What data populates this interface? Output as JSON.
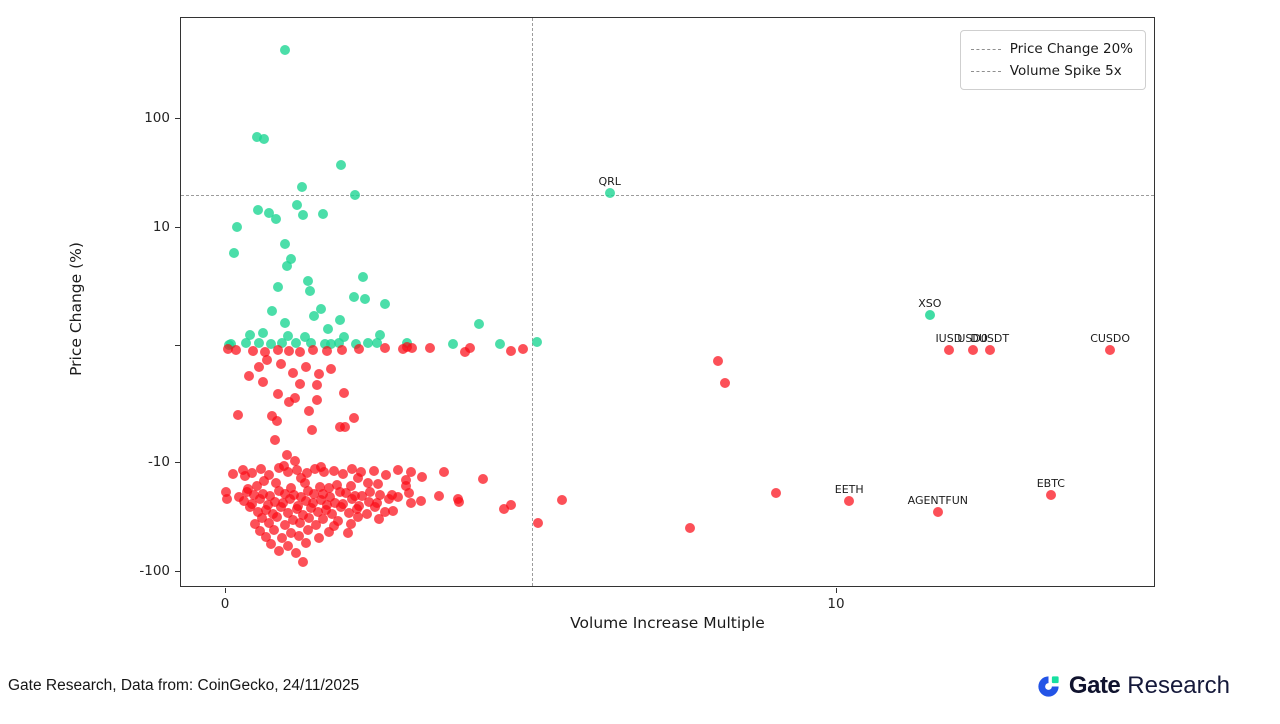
{
  "chart_data": {
    "type": "scatter",
    "title": "",
    "xlabel": "Volume Increase Multiple",
    "ylabel": "Price Change (%)",
    "x_scale": "linear",
    "y_scale": "symlog",
    "y_linthresh": 10,
    "xlim": [
      -0.75,
      15.2
    ],
    "ylim": [
      -140,
      840
    ],
    "grid": false,
    "x_ticks": [
      {
        "value": 0,
        "label": "0"
      },
      {
        "value": 10,
        "label": "10"
      }
    ],
    "y_ticks": [
      {
        "value": 100,
        "label": "100"
      },
      {
        "value": 10,
        "label": "10"
      },
      {
        "value": 0,
        "label": ""
      },
      {
        "value": -10,
        "label": "-10"
      },
      {
        "value": -100,
        "label": "-100"
      }
    ],
    "reference_lines": [
      {
        "axis": "y",
        "value": 20,
        "label": "Price Change 20%",
        "style": "dashed",
        "color": "#9c9c9c"
      },
      {
        "axis": "x",
        "value": 5,
        "label": "Volume Spike 5x",
        "style": "dashed",
        "color": "#9c9c9c"
      }
    ],
    "legend": {
      "position": "upper right",
      "entries": [
        {
          "label": "Price Change 20%"
        },
        {
          "label": "Volume Spike 5x"
        }
      ]
    },
    "labeled_points": [
      {
        "label": "QRL",
        "x": 6.28,
        "y": 20.9,
        "series": "gainers"
      },
      {
        "label": "XSO",
        "x": 11.52,
        "y": 2.6,
        "series": "losers_green_note",
        "color": "#2BDB9B"
      },
      {
        "label": "IUSD",
        "x": 11.83,
        "y": -0.35,
        "series": "losers"
      },
      {
        "label": "USD0",
        "x": 12.22,
        "y": -0.35,
        "series": "losers"
      },
      {
        "label": "DUSDT",
        "x": 12.5,
        "y": -0.35,
        "series": "losers"
      },
      {
        "label": "CUSDO",
        "x": 14.47,
        "y": -0.4,
        "series": "losers"
      },
      {
        "label": "EETH",
        "x": 10.2,
        "y": -22.3,
        "series": "losers"
      },
      {
        "label": "AGENTFUN",
        "x": 11.65,
        "y": -28.1,
        "series": "losers"
      },
      {
        "label": "EBTC",
        "x": 13.5,
        "y": -19.6,
        "series": "losers"
      }
    ],
    "series": [
      {
        "name": "gainers",
        "color": "rgba(30,214,148,0.8)",
        "points": [
          [
            0.97,
            430
          ],
          [
            0.51,
            68
          ],
          [
            0.62,
            65
          ],
          [
            1.88,
            38
          ],
          [
            1.24,
            24
          ],
          [
            2.11,
            20.1
          ],
          [
            0.52,
            14.6
          ],
          [
            0.7,
            13.7
          ],
          [
            0.82,
            12.1
          ],
          [
            1.16,
            16.2
          ],
          [
            1.26,
            13.2
          ],
          [
            1.59,
            13.4
          ],
          [
            0.18,
            10.2
          ],
          [
            0.13,
            7.9
          ],
          [
            0.97,
            8.6
          ],
          [
            1.06,
            7.4
          ],
          [
            1.0,
            6.8
          ],
          [
            1.34,
            5.5
          ],
          [
            1.37,
            4.6
          ],
          [
            0.85,
            5.0
          ],
          [
            2.24,
            5.8
          ],
          [
            2.09,
            4.1
          ],
          [
            2.27,
            4.0
          ],
          [
            2.6,
            3.5
          ],
          [
            0.75,
            2.9
          ],
          [
            1.55,
            3.1
          ],
          [
            1.44,
            2.5
          ],
          [
            1.87,
            2.2
          ],
          [
            1.67,
            1.4
          ],
          [
            0.97,
            1.9
          ],
          [
            0.39,
            0.9
          ],
          [
            0.61,
            1.1
          ],
          [
            1.01,
            0.8
          ],
          [
            1.29,
            0.7
          ],
          [
            1.93,
            0.7
          ],
          [
            2.52,
            0.9
          ],
          [
            2.96,
            0.2
          ],
          [
            4.14,
            1.8
          ],
          [
            5.09,
            0.3
          ],
          [
            0.08,
            0.1
          ],
          [
            0.33,
            0.2
          ],
          [
            0.54,
            0.25
          ],
          [
            0.74,
            0.1
          ],
          [
            0.92,
            0.25
          ],
          [
            1.15,
            0.2
          ],
          [
            1.39,
            0.25
          ],
          [
            1.62,
            0.1
          ],
          [
            1.85,
            0.25
          ],
          [
            2.13,
            0.1
          ],
          [
            2.47,
            0.25
          ],
          [
            3.72,
            0.1
          ],
          [
            4.48,
            0.1
          ],
          [
            0.05,
            0.05
          ],
          [
            1.72,
            0.15
          ],
          [
            2.33,
            0.2
          ]
        ]
      },
      {
        "name": "losers",
        "color": "rgba(251,13,24,0.72)",
        "points": [
          [
            0.03,
            -0.3
          ],
          [
            0.16,
            -0.35
          ],
          [
            0.44,
            -0.45
          ],
          [
            0.64,
            -0.55
          ],
          [
            0.85,
            -0.4
          ],
          [
            1.03,
            -0.45
          ],
          [
            1.21,
            -0.55
          ],
          [
            1.42,
            -0.4
          ],
          [
            1.65,
            -0.5
          ],
          [
            1.9,
            -0.4
          ],
          [
            2.18,
            -0.3
          ],
          [
            2.6,
            -0.25
          ],
          [
            2.9,
            -0.3
          ],
          [
            2.96,
            -0.15
          ],
          [
            3.04,
            -0.2
          ],
          [
            3.34,
            -0.2
          ],
          [
            3.91,
            -0.55
          ],
          [
            3.99,
            -0.25
          ],
          [
            4.66,
            -0.45
          ],
          [
            4.86,
            -0.3
          ],
          [
            0.54,
            -1.8
          ],
          [
            0.67,
            -1.2
          ],
          [
            0.9,
            -1.6
          ],
          [
            1.1,
            -2.3
          ],
          [
            1.31,
            -1.8
          ],
          [
            1.52,
            -2.4
          ],
          [
            1.72,
            -2.0
          ],
          [
            0.38,
            -2.6
          ],
          [
            0.61,
            -3.1
          ],
          [
            1.21,
            -3.3
          ],
          [
            1.49,
            -3.4
          ],
          [
            0.85,
            -4.1
          ],
          [
            1.03,
            -4.8
          ],
          [
            1.13,
            -4.5
          ],
          [
            1.49,
            -4.6
          ],
          [
            1.93,
            -4.0
          ],
          [
            0.2,
            -5.9
          ],
          [
            0.75,
            -6.0
          ],
          [
            0.83,
            -6.4
          ],
          [
            1.36,
            -5.6
          ],
          [
            2.09,
            -6.2
          ],
          [
            1.87,
            -6.9
          ],
          [
            1.95,
            -6.9
          ],
          [
            1.41,
            -7.2
          ],
          [
            0.8,
            -8.0
          ],
          [
            1.0,
            -9.3
          ],
          [
            1.13,
            -9.8
          ],
          [
            8.05,
            -1.3
          ],
          [
            8.17,
            -3.2
          ],
          [
            0.12,
            -12.5
          ],
          [
            0.28,
            -11.7
          ],
          [
            0.42,
            -12.3
          ],
          [
            0.57,
            -11.4
          ],
          [
            0.71,
            -12.9
          ],
          [
            0.86,
            -11.2
          ],
          [
            1.02,
            -12.0
          ],
          [
            1.17,
            -11.6
          ],
          [
            1.33,
            -12.4
          ],
          [
            1.46,
            -11.3
          ],
          [
            1.61,
            -12.1
          ],
          [
            1.77,
            -11.8
          ],
          [
            1.92,
            -12.7
          ],
          [
            2.06,
            -11.4
          ],
          [
            2.21,
            -12.2
          ],
          [
            2.43,
            -11.9
          ],
          [
            2.62,
            -12.8
          ],
          [
            2.81,
            -11.5
          ],
          [
            3.02,
            -12.1
          ],
          [
            3.21,
            -13.4
          ],
          [
            2.94,
            -14.3
          ],
          [
            0.95,
            -10.7
          ],
          [
            1.56,
            -10.9
          ],
          [
            2.16,
            -13.7
          ],
          [
            0.31,
            -13.1
          ],
          [
            0.62,
            -14.6
          ],
          [
            3.56,
            -12.0
          ],
          [
            1.22,
            -13.8
          ],
          [
            0.5,
            -16.2
          ],
          [
            0.82,
            -15.4
          ],
          [
            1.06,
            -16.8
          ],
          [
            1.29,
            -15.1
          ],
          [
            1.54,
            -16.5
          ],
          [
            1.81,
            -15.8
          ],
          [
            2.04,
            -16.1
          ],
          [
            2.32,
            -15.3
          ],
          [
            2.49,
            -15.6
          ],
          [
            2.95,
            -16.3
          ],
          [
            0.36,
            -17.2
          ],
          [
            1.68,
            -17.0
          ],
          [
            0.35,
            -18.4
          ],
          [
            0.6,
            -19.1
          ],
          [
            0.87,
            -18.2
          ],
          [
            1.11,
            -19.6
          ],
          [
            1.34,
            -18.0
          ],
          [
            1.58,
            -19.3
          ],
          [
            1.86,
            -18.6
          ],
          [
            2.11,
            -19.9
          ],
          [
            2.36,
            -18.3
          ],
          [
            2.71,
            -19.5
          ],
          [
            3.0,
            -18.8
          ],
          [
            0.21,
            -20.3
          ],
          [
            0.46,
            -19.8
          ],
          [
            0.72,
            -20.1
          ],
          [
            0.97,
            -19.4
          ],
          [
            1.23,
            -20.6
          ],
          [
            1.44,
            -19.2
          ],
          [
            1.71,
            -20.4
          ],
          [
            1.97,
            -19.0
          ],
          [
            2.22,
            -20.2
          ],
          [
            2.52,
            -19.7
          ],
          [
            2.82,
            -20.5
          ],
          [
            3.19,
            -22.3
          ],
          [
            3.49,
            -20.0
          ],
          [
            0.0,
            -18.5
          ],
          [
            0.02,
            -21.5
          ],
          [
            0.3,
            -22.1
          ],
          [
            0.56,
            -21.4
          ],
          [
            0.81,
            -22.8
          ],
          [
            1.04,
            -21.2
          ],
          [
            1.31,
            -22.5
          ],
          [
            1.56,
            -21.8
          ],
          [
            1.79,
            -23.2
          ],
          [
            2.07,
            -21.6
          ],
          [
            2.34,
            -22.9
          ],
          [
            2.66,
            -21.3
          ],
          [
            3.02,
            -23.5
          ],
          [
            3.8,
            -21.2
          ],
          [
            3.82,
            -23.0
          ],
          [
            4.2,
            -14.1
          ],
          [
            4.55,
            -26.2
          ],
          [
            4.66,
            -24.1
          ],
          [
            5.5,
            -21.8
          ],
          [
            0.43,
            -23.8
          ],
          [
            0.68,
            -24.2
          ],
          [
            0.93,
            -23.4
          ],
          [
            1.18,
            -24.6
          ],
          [
            1.43,
            -23.1
          ],
          [
            1.66,
            -24.3
          ],
          [
            1.91,
            -23.7
          ],
          [
            2.17,
            -24.8
          ],
          [
            2.47,
            -23.3
          ],
          [
            0.4,
            -25.6
          ],
          [
            0.66,
            -26.8
          ],
          [
            0.9,
            -25.2
          ],
          [
            1.16,
            -26.4
          ],
          [
            1.39,
            -25.9
          ],
          [
            1.64,
            -27.1
          ],
          [
            1.89,
            -25.4
          ],
          [
            2.14,
            -26.7
          ],
          [
            2.44,
            -25.1
          ],
          [
            2.74,
            -27.4
          ],
          [
            0.52,
            -28.3
          ],
          [
            0.77,
            -29.1
          ],
          [
            1.01,
            -28.6
          ],
          [
            1.26,
            -29.8
          ],
          [
            1.51,
            -28.1
          ],
          [
            1.74,
            -29.4
          ],
          [
            2.01,
            -28.8
          ],
          [
            2.31,
            -29.6
          ],
          [
            2.61,
            -28.4
          ],
          [
            0.59,
            -32.2
          ],
          [
            0.84,
            -31.5
          ],
          [
            1.09,
            -33.1
          ],
          [
            1.36,
            -31.8
          ],
          [
            1.59,
            -32.6
          ],
          [
            1.84,
            -34.2
          ],
          [
            2.16,
            -31.4
          ],
          [
            2.51,
            -32.9
          ],
          [
            5.1,
            -35.5
          ],
          [
            0.47,
            -36.3
          ],
          [
            0.71,
            -35.7
          ],
          [
            0.96,
            -37.2
          ],
          [
            1.21,
            -35.4
          ],
          [
            1.47,
            -36.8
          ],
          [
            1.76,
            -37.5
          ],
          [
            2.04,
            -36.1
          ],
          [
            0.55,
            -42.3
          ],
          [
            0.79,
            -41.1
          ],
          [
            1.06,
            -43.6
          ],
          [
            1.34,
            -40.8
          ],
          [
            1.69,
            -42.9
          ],
          [
            2.0,
            -44.2
          ],
          [
            0.66,
            -47.5
          ],
          [
            0.91,
            -48.8
          ],
          [
            1.19,
            -46.4
          ],
          [
            1.52,
            -49.2
          ],
          [
            7.6,
            -39.5
          ],
          [
            0.74,
            -55.3
          ],
          [
            1.02,
            -57.8
          ],
          [
            1.31,
            -54.1
          ],
          [
            0.86,
            -64.2
          ],
          [
            1.14,
            -67.5
          ],
          [
            1.26,
            -80.5
          ],
          [
            9.0,
            -19.0
          ]
        ]
      }
    ],
    "colors": {
      "gainers": "#2BDB9B",
      "losers": "#FB3A30"
    }
  },
  "footer": {
    "source": "Gate Research, Data from: CoinGecko, 24/11/2025",
    "brand_bold": "Gate",
    "brand_regular": "Research",
    "brand_blue": "#2354E6",
    "brand_green": "#17E0A1"
  }
}
